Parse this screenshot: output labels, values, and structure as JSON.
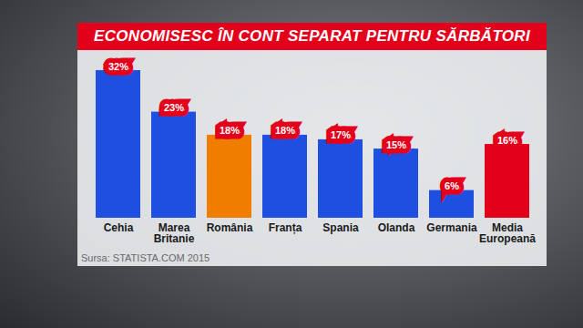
{
  "chart_data": {
    "type": "bar",
    "title": "ECONOMISESC ÎN CONT SEPARAT PENTRU SĂRBĂTORI",
    "categories": [
      "Cehia",
      "Marea Britanie",
      "România",
      "Franța",
      "Spania",
      "Olanda",
      "Germania",
      "Media Europeană"
    ],
    "values": [
      32,
      23,
      18,
      18,
      17,
      15,
      6,
      16
    ],
    "value_labels": [
      "32%",
      "23%",
      "18%",
      "18%",
      "17%",
      "15%",
      "6%",
      "16%"
    ],
    "colors": [
      "#1f4fe0",
      "#1f4fe0",
      "#f07c00",
      "#1f4fe0",
      "#1f4fe0",
      "#1f4fe0",
      "#1f4fe0",
      "#e3001b"
    ],
    "data_labels": true,
    "tick_labels": "x",
    "caption": "Sursa: STATISTA.COM 2015"
  }
}
